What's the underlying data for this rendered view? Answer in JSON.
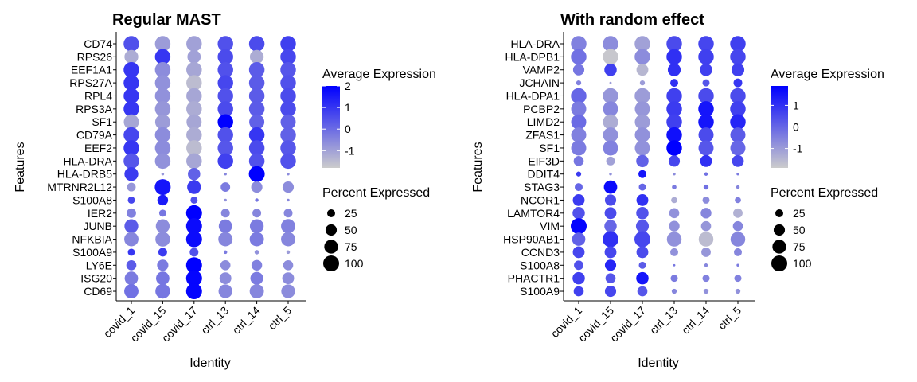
{
  "colors": {
    "low": "#cccccc",
    "high": "#0000ff",
    "axis": "#000000"
  },
  "chart_data": [
    {
      "type": "dotplot",
      "title": "Regular MAST",
      "xlabel": "Identity",
      "ylabel": "Features",
      "identities": [
        "covid_1",
        "covid_15",
        "covid_17",
        "ctrl_13",
        "ctrl_14",
        "ctrl_5"
      ],
      "features": [
        "CD74",
        "RPS26",
        "EEF1A1",
        "RPS27A",
        "RPL4",
        "RPS3A",
        "SF1",
        "CD79A",
        "EEF2",
        "HLA-DRA",
        "HLA-DRB5",
        "MTRNR2L12",
        "S100A8",
        "IER2",
        "JUNB",
        "NFKBIA",
        "S100A9",
        "LY6E",
        "ISG20",
        "CD69"
      ],
      "avg_expression": [
        [
          0.5,
          -0.9,
          -1.0,
          0.5,
          0.6,
          0.8
        ],
        [
          -1.2,
          1.0,
          -1.0,
          0.6,
          -1.2,
          0.7
        ],
        [
          1.0,
          -0.6,
          -1.1,
          0.5,
          0.3,
          0.4
        ],
        [
          1.0,
          -0.7,
          -1.5,
          0.7,
          0.3,
          0.5
        ],
        [
          1.0,
          -0.7,
          -1.1,
          0.5,
          0.3,
          0.6
        ],
        [
          1.0,
          -0.8,
          -1.2,
          0.6,
          0.3,
          0.6
        ],
        [
          -1.1,
          -0.9,
          -1.1,
          2.0,
          0.2,
          0.2
        ],
        [
          0.7,
          -0.6,
          -1.2,
          0.5,
          1.0,
          0.2
        ],
        [
          1.0,
          -0.6,
          -1.5,
          0.4,
          0.6,
          0.4
        ],
        [
          0.4,
          -0.7,
          -1.1,
          0.8,
          0.5,
          0.5
        ],
        [
          0.9,
          -0.8,
          0.2,
          -0.5,
          2.0,
          -0.6
        ],
        [
          -0.8,
          1.6,
          0.9,
          -0.3,
          -0.6,
          -0.6
        ],
        [
          0.7,
          1.5,
          0.5,
          -0.7,
          -0.2,
          -0.5
        ],
        [
          -0.4,
          -0.2,
          2.0,
          -0.5,
          -0.5,
          -0.5
        ],
        [
          0.3,
          -0.6,
          1.8,
          -0.3,
          -0.3,
          -0.4
        ],
        [
          -0.5,
          -0.6,
          1.8,
          -0.5,
          -0.3,
          -0.5
        ],
        [
          1.0,
          0.9,
          0.5,
          -0.3,
          -0.7,
          -0.9
        ],
        [
          0.3,
          -0.3,
          2.0,
          -0.6,
          -0.4,
          -0.6
        ],
        [
          -0.3,
          -0.2,
          1.9,
          -0.6,
          -0.3,
          -0.6
        ],
        [
          -0.1,
          -0.2,
          1.9,
          -0.5,
          -0.5,
          -0.6
        ]
      ],
      "pct_expressed": [
        [
          95,
          95,
          95,
          95,
          95,
          95
        ],
        [
          75,
          95,
          70,
          95,
          75,
          95
        ],
        [
          95,
          95,
          95,
          95,
          95,
          95
        ],
        [
          95,
          95,
          95,
          95,
          95,
          95
        ],
        [
          95,
          95,
          95,
          95,
          95,
          95
        ],
        [
          95,
          95,
          95,
          95,
          95,
          95
        ],
        [
          90,
          90,
          90,
          95,
          90,
          90
        ],
        [
          95,
          95,
          95,
          95,
          95,
          95
        ],
        [
          95,
          95,
          95,
          95,
          95,
          95
        ],
        [
          95,
          95,
          95,
          95,
          95,
          95
        ],
        [
          75,
          3,
          60,
          3,
          100,
          3
        ],
        [
          30,
          100,
          75,
          35,
          50,
          50
        ],
        [
          20,
          45,
          20,
          3,
          5,
          3
        ],
        [
          35,
          20,
          100,
          30,
          30,
          30
        ],
        [
          75,
          75,
          100,
          70,
          75,
          80
        ],
        [
          80,
          85,
          100,
          80,
          80,
          80
        ],
        [
          20,
          30,
          30,
          5,
          8,
          5
        ],
        [
          40,
          50,
          100,
          40,
          45,
          40
        ],
        [
          70,
          70,
          100,
          55,
          65,
          55
        ],
        [
          80,
          85,
          100,
          75,
          80,
          75
        ]
      ],
      "color_legend": {
        "title": "Average Expression",
        "range": [
          -1.8,
          2.0
        ],
        "ticks": [
          -1,
          0,
          1,
          2
        ],
        "tick_labels": [
          "-1",
          "0",
          "1",
          "2"
        ]
      },
      "size_legend": {
        "title": "Percent Expressed",
        "values": [
          25,
          50,
          75,
          100
        ],
        "labels": [
          "25",
          "50",
          "75",
          "100"
        ]
      }
    },
    {
      "type": "dotplot",
      "title": "With random effect",
      "xlabel": "Identity",
      "ylabel": "Features",
      "identities": [
        "covid_1",
        "covid_15",
        "covid_17",
        "ctrl_13",
        "ctrl_14",
        "ctrl_5"
      ],
      "features": [
        "HLA-DRA",
        "HLA-DPB1",
        "VAMP2",
        "JCHAIN",
        "HLA-DPA1",
        "PCBP2",
        "LIMD2",
        "ZFAS1",
        "SF1",
        "EIF3D",
        "DDIT4",
        "STAG3",
        "NCOR1",
        "LAMTOR4",
        "VIM",
        "HSP90AB1",
        "CCND3",
        "S100A8",
        "PHACTR1",
        "S100A9"
      ],
      "avg_expression": [
        [
          -0.5,
          -0.7,
          -1.1,
          0.5,
          0.6,
          0.7
        ],
        [
          -0.2,
          -1.8,
          -0.7,
          1.0,
          0.7,
          0.6
        ],
        [
          -0.3,
          0.7,
          -1.5,
          1.0,
          0.7,
          0.7
        ],
        [
          -0.5,
          -1.0,
          -1.0,
          1.0,
          0.3,
          0.9
        ],
        [
          0.0,
          -0.9,
          -1.0,
          0.7,
          0.5,
          0.5
        ],
        [
          -0.4,
          -0.6,
          -0.9,
          0.8,
          1.5,
          0.7
        ],
        [
          -0.1,
          -1.3,
          -1.0,
          0.7,
          1.5,
          1.2
        ],
        [
          -0.5,
          -0.8,
          -0.8,
          1.6,
          0.5,
          0.2
        ],
        [
          -0.4,
          -0.5,
          -0.8,
          1.9,
          0.3,
          0.0
        ],
        [
          -0.3,
          -1.1,
          0.1,
          0.6,
          1.0,
          0.6
        ],
        [
          0.8,
          -0.8,
          1.5,
          -0.7,
          -0.2,
          -0.4
        ],
        [
          0.0,
          1.7,
          0.0,
          -0.4,
          -0.2,
          -0.6
        ],
        [
          0.8,
          0.5,
          1.0,
          -1.3,
          -0.7,
          -0.5
        ],
        [
          0.4,
          0.5,
          0.4,
          -0.8,
          -0.6,
          -1.4
        ],
        [
          1.8,
          0.0,
          0.3,
          -0.8,
          -0.9,
          -0.6
        ],
        [
          0.1,
          1.0,
          0.6,
          -0.8,
          -1.6,
          -0.6
        ],
        [
          0.6,
          0.6,
          0.5,
          -0.8,
          -0.9,
          -0.6
        ],
        [
          0.4,
          1.2,
          0.2,
          -0.3,
          -0.6,
          -0.4
        ],
        [
          0.7,
          0.3,
          1.5,
          -0.4,
          -0.5,
          -0.5
        ],
        [
          0.7,
          0.6,
          0.3,
          -0.6,
          -0.8,
          -0.8
        ]
      ],
      "pct_expressed": [
        [
          95,
          95,
          95,
          95,
          95,
          95
        ],
        [
          95,
          95,
          95,
          95,
          95,
          95
        ],
        [
          50,
          60,
          55,
          65,
          60,
          65
        ],
        [
          10,
          2,
          10,
          25,
          20,
          30
        ],
        [
          95,
          95,
          95,
          95,
          95,
          95
        ],
        [
          90,
          90,
          90,
          95,
          95,
          95
        ],
        [
          90,
          90,
          90,
          95,
          95,
          95
        ],
        [
          90,
          90,
          90,
          95,
          90,
          90
        ],
        [
          90,
          90,
          90,
          95,
          90,
          90
        ],
        [
          40,
          30,
          60,
          50,
          55,
          55
        ],
        [
          10,
          3,
          25,
          3,
          5,
          3
        ],
        [
          25,
          70,
          20,
          8,
          10,
          5
        ],
        [
          55,
          50,
          55,
          15,
          20,
          15
        ],
        [
          60,
          55,
          60,
          40,
          45,
          35
        ],
        [
          100,
          60,
          65,
          45,
          40,
          40
        ],
        [
          70,
          100,
          100,
          85,
          85,
          85
        ],
        [
          55,
          55,
          55,
          25,
          35,
          25
        ],
        [
          35,
          50,
          20,
          2,
          5,
          3
        ],
        [
          60,
          40,
          60,
          20,
          20,
          20
        ],
        [
          40,
          50,
          40,
          10,
          10,
          10
        ]
      ],
      "color_legend": {
        "title": "Average Expression",
        "range": [
          -1.9,
          1.9
        ],
        "ticks": [
          -1,
          0,
          1
        ],
        "tick_labels": [
          "-1",
          "0",
          "1"
        ]
      },
      "size_legend": {
        "title": "Percent Expressed",
        "values": [
          25,
          50,
          75,
          100
        ],
        "labels": [
          "25",
          "50",
          "75",
          "100"
        ]
      }
    }
  ]
}
